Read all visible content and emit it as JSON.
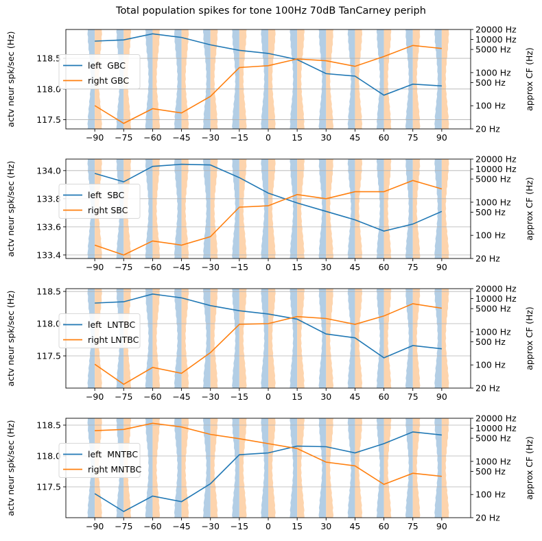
{
  "figure": {
    "title": "Total population spikes for tone 100Hz 70dB TanCarney periph"
  },
  "colors": {
    "left": "#1f77b4",
    "right": "#ff7f0e",
    "violin_left": "#a6c5e0",
    "violin_right": "#fdcc9f",
    "grid": "#b0b0b0"
  },
  "chart_data": [
    {
      "type": "line",
      "ylabel": "actv neur spk/sec (Hz)",
      "ylabel_right": "approx CF (Hz)",
      "x": [
        -90,
        -75,
        -60,
        -45,
        -30,
        -15,
        0,
        15,
        30,
        45,
        60,
        75,
        90
      ],
      "ylim": [
        117.35,
        118.97
      ],
      "yticks": [
        117.5,
        118.0,
        118.5
      ],
      "ytick_labels": [
        "117.5",
        "118.0",
        "118.5"
      ],
      "right_ticks": [
        "20 Hz",
        "100 Hz",
        "500 Hz",
        "1000 Hz",
        "5000 Hz",
        "10000 Hz",
        "20000 Hz"
      ],
      "grid": true,
      "legend": "center-left",
      "series": [
        {
          "name": "left  GBC",
          "values": [
            118.78,
            118.8,
            118.9,
            118.84,
            118.72,
            118.63,
            118.58,
            118.48,
            118.25,
            118.21,
            117.9,
            118.08,
            118.05
          ]
        },
        {
          "name": "right GBC",
          "values": [
            117.73,
            117.44,
            117.68,
            117.61,
            117.88,
            118.35,
            118.38,
            118.49,
            118.46,
            118.37,
            118.53,
            118.71,
            118.66
          ]
        }
      ]
    },
    {
      "type": "line",
      "ylabel": "actv neur spk/sec (Hz)",
      "ylabel_right": "approx CF (Hz)",
      "x": [
        -90,
        -75,
        -60,
        -45,
        -30,
        -15,
        0,
        15,
        30,
        45,
        60,
        75,
        90
      ],
      "ylim": [
        133.375,
        134.082
      ],
      "yticks": [
        133.4,
        133.6,
        133.8,
        134.0
      ],
      "ytick_labels": [
        "133.4",
        "133.6",
        "133.8",
        "134.0"
      ],
      "right_ticks": [
        "20 Hz",
        "100 Hz",
        "500 Hz",
        "1000 Hz",
        "5000 Hz",
        "10000 Hz",
        "20000 Hz"
      ],
      "grid": true,
      "legend": "center-left",
      "series": [
        {
          "name": "left  SBC",
          "values": [
            133.98,
            133.92,
            134.03,
            134.045,
            134.04,
            133.95,
            133.84,
            133.77,
            133.71,
            133.65,
            133.57,
            133.62,
            133.71
          ]
        },
        {
          "name": "right SBC",
          "values": [
            133.47,
            133.4,
            133.5,
            133.47,
            133.53,
            133.74,
            133.75,
            133.83,
            133.8,
            133.85,
            133.85,
            133.93,
            133.87
          ]
        }
      ]
    },
    {
      "type": "line",
      "ylabel": "actv neur spk/sec (Hz)",
      "ylabel_right": "approx CF (Hz)",
      "x": [
        -90,
        -75,
        -60,
        -45,
        -30,
        -15,
        0,
        15,
        30,
        45,
        60,
        75,
        90
      ],
      "ylim": [
        117.0,
        118.543
      ],
      "yticks": [
        117.5,
        118.0,
        118.5
      ],
      "ytick_labels": [
        "117.5",
        "118.0",
        "118.5"
      ],
      "right_ticks": [
        "20 Hz",
        "100 Hz",
        "500 Hz",
        "1000 Hz",
        "5000 Hz",
        "10000 Hz",
        "20000 Hz"
      ],
      "grid": true,
      "legend": "center-left",
      "series": [
        {
          "name": "left  LNTBC",
          "values": [
            118.32,
            118.34,
            118.46,
            118.4,
            118.28,
            118.2,
            118.15,
            118.07,
            117.84,
            117.78,
            117.47,
            117.66,
            117.61
          ]
        },
        {
          "name": "right LNTBC",
          "values": [
            117.37,
            117.06,
            117.32,
            117.23,
            117.55,
            117.99,
            118.0,
            118.11,
            118.08,
            117.99,
            118.12,
            118.31,
            118.24
          ]
        }
      ]
    },
    {
      "type": "line",
      "ylabel": "actv neur spk/sec (Hz)",
      "ylabel_right": "approx CF (Hz)",
      "x": [
        -90,
        -75,
        -60,
        -45,
        -30,
        -15,
        0,
        15,
        30,
        45,
        60,
        75,
        90
      ],
      "ylim": [
        117.0,
        118.611
      ],
      "yticks": [
        117.5,
        118.0,
        118.5
      ],
      "ytick_labels": [
        "117.5",
        "118.0",
        "118.5"
      ],
      "right_ticks": [
        "20 Hz",
        "100 Hz",
        "500 Hz",
        "1000 Hz",
        "5000 Hz",
        "10000 Hz",
        "20000 Hz"
      ],
      "grid": true,
      "legend": "center-left",
      "series": [
        {
          "name": "left  MNTBC",
          "values": [
            117.39,
            117.1,
            117.35,
            117.26,
            117.55,
            118.02,
            118.05,
            118.16,
            118.15,
            118.05,
            118.2,
            118.39,
            118.34
          ]
        },
        {
          "name": "right MNTBC",
          "values": [
            118.41,
            118.43,
            118.53,
            118.47,
            118.35,
            118.28,
            118.2,
            118.12,
            117.9,
            117.84,
            117.54,
            117.72,
            117.67
          ]
        }
      ]
    }
  ]
}
